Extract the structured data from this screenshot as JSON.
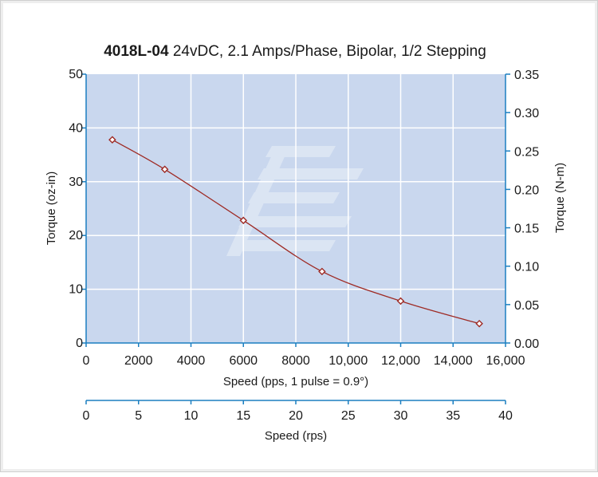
{
  "chart_data": {
    "type": "line",
    "title_bold": "4018L-04",
    "title_rest": " 24vDC, 2.1 Amps/Phase, Bipolar, 1/2 Stepping",
    "x": [
      1000,
      3000,
      6000,
      9000,
      12000,
      15000
    ],
    "series": [
      {
        "values": [
          37.8,
          32.3,
          22.8,
          13.3,
          7.8,
          3.6
        ]
      }
    ],
    "xlabel": "Speed (pps, 1 pulse = 0.9°)",
    "ylabel": "Torque (oz-in)",
    "y2label": "Torque (N-m)",
    "x2label": "Speed (rps)",
    "xlim": [
      0,
      16000
    ],
    "ylim": [
      0,
      50
    ],
    "y2lim": [
      0,
      0.35
    ],
    "x2lim": [
      0,
      40
    ],
    "xticks": [
      "0",
      "2000",
      "4000",
      "6000",
      "8000",
      "10,000",
      "12,000",
      "14,000",
      "16,000"
    ],
    "yticks": [
      "0",
      "10",
      "20",
      "30",
      "40",
      "50"
    ],
    "y2ticks": [
      "0.00",
      "0.05",
      "0.10",
      "0.15",
      "0.20",
      "0.25",
      "0.30",
      "0.35"
    ],
    "x2ticks": [
      "0",
      "5",
      "10",
      "15",
      "20",
      "25",
      "30",
      "35",
      "40"
    ],
    "grid": true,
    "colors": {
      "plot_bg": "#c9d7ee",
      "line": "#9e2a24",
      "axis": "#1b7fc1",
      "grid": "#ffffff"
    }
  }
}
